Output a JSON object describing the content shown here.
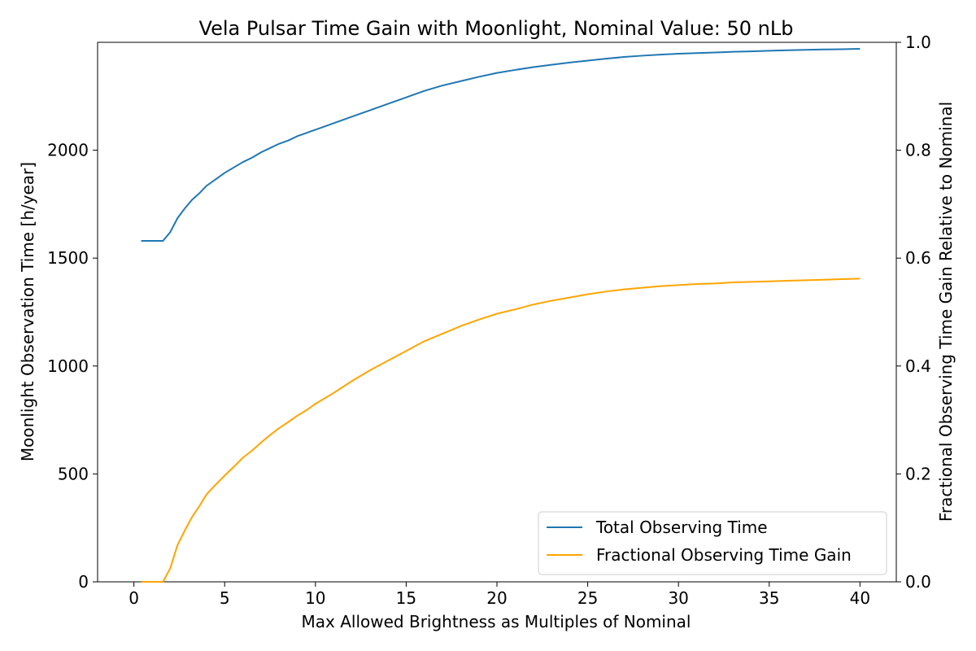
{
  "chart_data": {
    "type": "line",
    "title": "Vela Pulsar Time Gain with Moonlight, Nominal Value: 50 nLb",
    "xlabel": "Max Allowed Brightness as Multiples of Nominal",
    "ylabel_left": "Moonlight Observation Time [h/year]",
    "ylabel_right": "Fractional Observing Time Gain Relative to Nominal",
    "xlim": [
      -2,
      42
    ],
    "ylim_left": [
      0,
      2500
    ],
    "ylim_right": [
      0,
      1.0
    ],
    "xticks": [
      0,
      5,
      10,
      15,
      20,
      25,
      30,
      35,
      40
    ],
    "yticks_left": [
      0,
      500,
      1000,
      1500,
      2000
    ],
    "yticks_right": [
      0.0,
      0.2,
      0.4,
      0.6,
      0.8,
      1.0
    ],
    "grid": false,
    "legend_position": "bottom-right",
    "series": [
      {
        "name": "Total Observing Time",
        "axis": "left",
        "color": "#1f77b4",
        "points": [
          [
            0.4,
            1580
          ],
          [
            1.6,
            1580
          ],
          [
            2.0,
            1620
          ],
          [
            2.4,
            1685
          ],
          [
            2.8,
            1730
          ],
          [
            3.2,
            1770
          ],
          [
            3.6,
            1800
          ],
          [
            4.0,
            1835
          ],
          [
            4.5,
            1865
          ],
          [
            5.0,
            1895
          ],
          [
            5.5,
            1920
          ],
          [
            6.0,
            1945
          ],
          [
            6.5,
            1965
          ],
          [
            7.0,
            1990
          ],
          [
            7.5,
            2010
          ],
          [
            8.0,
            2030
          ],
          [
            8.5,
            2045
          ],
          [
            9.0,
            2065
          ],
          [
            9.5,
            2080
          ],
          [
            10.0,
            2095
          ],
          [
            11.0,
            2125
          ],
          [
            12.0,
            2155
          ],
          [
            13.0,
            2185
          ],
          [
            14.0,
            2215
          ],
          [
            15.0,
            2245
          ],
          [
            16.0,
            2275
          ],
          [
            17.0,
            2300
          ],
          [
            18.0,
            2320
          ],
          [
            19.0,
            2340
          ],
          [
            20.0,
            2358
          ],
          [
            21.0,
            2372
          ],
          [
            22.0,
            2385
          ],
          [
            23.0,
            2396
          ],
          [
            24.0,
            2406
          ],
          [
            25.0,
            2415
          ],
          [
            26.0,
            2424
          ],
          [
            27.0,
            2432
          ],
          [
            28.0,
            2438
          ],
          [
            29.0,
            2443
          ],
          [
            30.0,
            2447
          ],
          [
            31.0,
            2450
          ],
          [
            32.0,
            2453
          ],
          [
            33.0,
            2456
          ],
          [
            34.0,
            2458
          ],
          [
            35.0,
            2461
          ],
          [
            36.0,
            2463
          ],
          [
            37.0,
            2465
          ],
          [
            38.0,
            2467
          ],
          [
            39.0,
            2468
          ],
          [
            40.0,
            2470
          ]
        ]
      },
      {
        "name": "Fractional Observing Time Gain",
        "axis": "right",
        "color": "#ffa500",
        "points": [
          [
            0.4,
            0.0
          ],
          [
            1.6,
            0.0
          ],
          [
            2.0,
            0.025
          ],
          [
            2.4,
            0.068
          ],
          [
            2.8,
            0.095
          ],
          [
            3.2,
            0.12
          ],
          [
            3.6,
            0.14
          ],
          [
            4.0,
            0.162
          ],
          [
            4.5,
            0.18
          ],
          [
            5.0,
            0.197
          ],
          [
            5.5,
            0.213
          ],
          [
            6.0,
            0.23
          ],
          [
            6.5,
            0.243
          ],
          [
            7.0,
            0.258
          ],
          [
            7.5,
            0.272
          ],
          [
            8.0,
            0.285
          ],
          [
            8.5,
            0.296
          ],
          [
            9.0,
            0.308
          ],
          [
            9.5,
            0.318
          ],
          [
            10.0,
            0.33
          ],
          [
            11.0,
            0.35
          ],
          [
            12.0,
            0.372
          ],
          [
            13.0,
            0.392
          ],
          [
            14.0,
            0.41
          ],
          [
            15.0,
            0.428
          ],
          [
            16.0,
            0.446
          ],
          [
            17.0,
            0.46
          ],
          [
            18.0,
            0.474
          ],
          [
            19.0,
            0.486
          ],
          [
            20.0,
            0.497
          ],
          [
            21.0,
            0.505
          ],
          [
            22.0,
            0.514
          ],
          [
            23.0,
            0.521
          ],
          [
            24.0,
            0.527
          ],
          [
            25.0,
            0.533
          ],
          [
            26.0,
            0.538
          ],
          [
            27.0,
            0.542
          ],
          [
            28.0,
            0.545
          ],
          [
            29.0,
            0.548
          ],
          [
            30.0,
            0.55
          ],
          [
            31.0,
            0.552
          ],
          [
            32.0,
            0.553
          ],
          [
            33.0,
            0.555
          ],
          [
            34.0,
            0.556
          ],
          [
            35.0,
            0.557
          ],
          [
            36.0,
            0.558
          ],
          [
            37.0,
            0.559
          ],
          [
            38.0,
            0.56
          ],
          [
            39.0,
            0.561
          ],
          [
            40.0,
            0.562
          ]
        ]
      }
    ]
  }
}
